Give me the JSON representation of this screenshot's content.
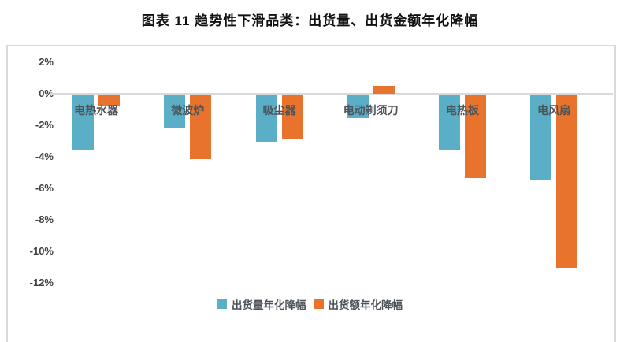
{
  "title": "图表 11 趋势性下滑品类：出货量、出货金额年化降幅",
  "chart_data": {
    "type": "bar",
    "orientation": "vertical-grouped",
    "categories": [
      "电热水器",
      "微波炉",
      "吸尘器",
      "电动剃须刀",
      "电热板",
      "电风扇"
    ],
    "series": [
      {
        "name": "出货量年化降幅",
        "color": "#5aaec6",
        "values": [
          -3.5,
          -2.1,
          -3.0,
          -1.5,
          -3.5,
          -5.4
        ]
      },
      {
        "name": "出货额年化降幅",
        "color": "#e7732d",
        "values": [
          -0.7,
          -4.1,
          -2.8,
          0.5,
          -5.3,
          -11.0
        ]
      }
    ],
    "ylabel": "",
    "xlabel": "",
    "ylim": [
      -13,
      3
    ],
    "yticks": [
      2,
      0,
      -2,
      -4,
      -6,
      -8,
      -10,
      -12
    ],
    "ytick_suffix": "%",
    "grid": "zero-line-only",
    "legend_position": "bottom-center",
    "category_label_position": "below-zero-axis"
  },
  "colors": {
    "series1": "#5aaec6",
    "series2": "#e7732d",
    "axis_line": "#d9d9d9",
    "tick_text": "#404040",
    "category_text": "#4d5359",
    "title_text": "#111111",
    "plot_border": "#d9d9d9",
    "background": "#ffffff"
  }
}
